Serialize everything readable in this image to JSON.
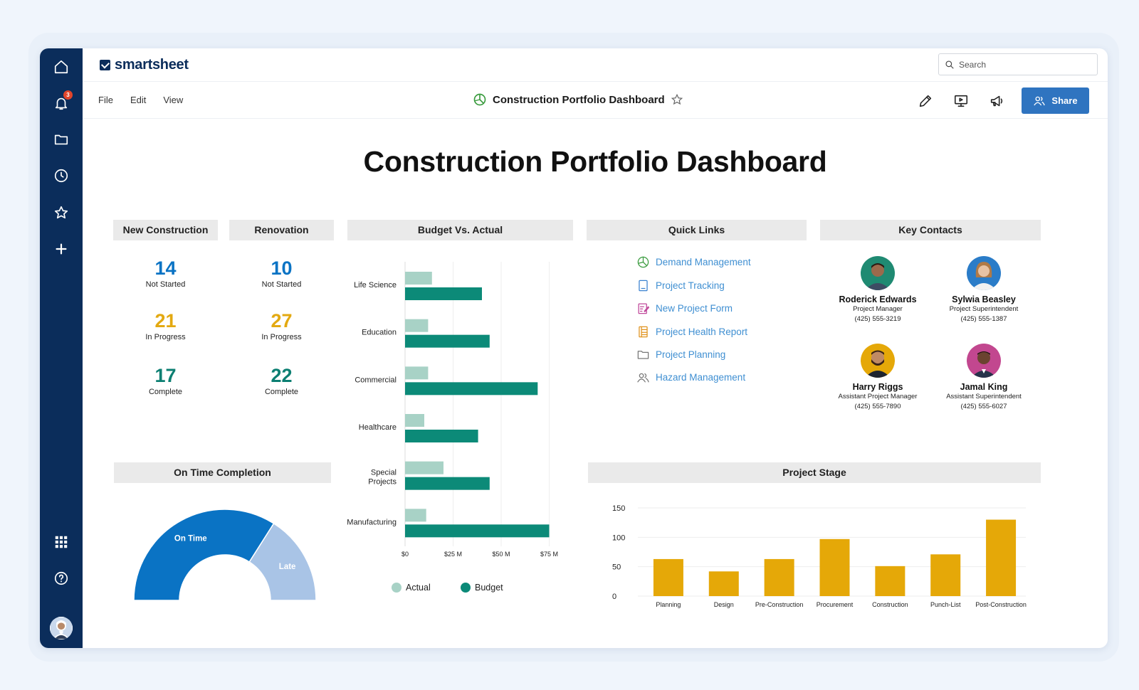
{
  "app": {
    "brand": "smartsheet",
    "notifications_count": "3",
    "search_placeholder": "Search"
  },
  "menubar": {
    "menus": [
      "File",
      "Edit",
      "View"
    ],
    "doc_title": "Construction Portfolio Dashboard",
    "share_label": "Share"
  },
  "dashboard": {
    "title": "Construction Portfolio Dashboard",
    "new_construction": {
      "header": "New Construction",
      "metrics": [
        {
          "value": "14",
          "label": "Not Started"
        },
        {
          "value": "21",
          "label": "In Progress"
        },
        {
          "value": "17",
          "label": "Complete"
        }
      ]
    },
    "renovation": {
      "header": "Renovation",
      "metrics": [
        {
          "value": "10",
          "label": "Not Started"
        },
        {
          "value": "27",
          "label": "In Progress"
        },
        {
          "value": "22",
          "label": "Complete"
        }
      ]
    },
    "quick_links": {
      "header": "Quick Links",
      "items": [
        {
          "label": "Demand Management",
          "icon": "dashboard-icon"
        },
        {
          "label": "Project Tracking",
          "icon": "sheet-icon"
        },
        {
          "label": "New Project Form",
          "icon": "form-icon"
        },
        {
          "label": "Project Health Report",
          "icon": "report-icon"
        },
        {
          "label": "Project Planning",
          "icon": "folder-icon"
        },
        {
          "label": "Hazard Management",
          "icon": "people-icon"
        }
      ]
    },
    "key_contacts": {
      "header": "Key Contacts",
      "people": [
        {
          "name": "Roderick Edwards",
          "role": "Project Manager",
          "phone": "(425) 555-3219"
        },
        {
          "name": "Sylwia Beasley",
          "role": "Project Superintendent",
          "phone": "(425) 555-1387"
        },
        {
          "name": "Harry Riggs",
          "role": "Assistant Project Manager",
          "phone": "(425) 555-7890"
        },
        {
          "name": "Jamal King",
          "role": "Assistant Superintendent",
          "phone": "(425) 555-6027"
        }
      ]
    }
  },
  "colors": {
    "rail": "#0b2d5b",
    "accent": "#2f74c0",
    "actual": "#a8d2c6",
    "budget": "#0c8a78",
    "stage": "#e5a808",
    "on_time": "#0a73c4",
    "late": "#a9c4e6"
  },
  "chart_data": [
    {
      "type": "bar",
      "orientation": "horizontal",
      "title": "Budget Vs. Actual",
      "categories": [
        "Life Science",
        "Education",
        "Commercial",
        "Healthcare",
        "Special Projects",
        "Manufacturing"
      ],
      "series": [
        {
          "name": "Actual",
          "values": [
            14,
            12,
            12,
            10,
            20,
            11
          ]
        },
        {
          "name": "Budget",
          "values": [
            40,
            44,
            69,
            38,
            44,
            75
          ]
        }
      ],
      "x_ticks": [
        "$0",
        "$25 M",
        "$50 M",
        "$75 M"
      ],
      "xlim": [
        0,
        80
      ],
      "legend": "bottom"
    },
    {
      "type": "bar",
      "title": "Project Stage",
      "categories": [
        "Planning",
        "Design",
        "Pre-Construction",
        "Procurement",
        "Construction",
        "Punch-List",
        "Post-Construction"
      ],
      "values": [
        63,
        42,
        63,
        97,
        51,
        71,
        130
      ],
      "y_ticks": [
        "0",
        "50",
        "100",
        "150"
      ],
      "ylim": [
        0,
        150
      ]
    },
    {
      "type": "pie",
      "variant": "semi-donut",
      "title": "On Time Completion",
      "slices": [
        {
          "label": "On Time",
          "value": 68
        },
        {
          "label": "Late",
          "value": 32
        }
      ]
    }
  ]
}
